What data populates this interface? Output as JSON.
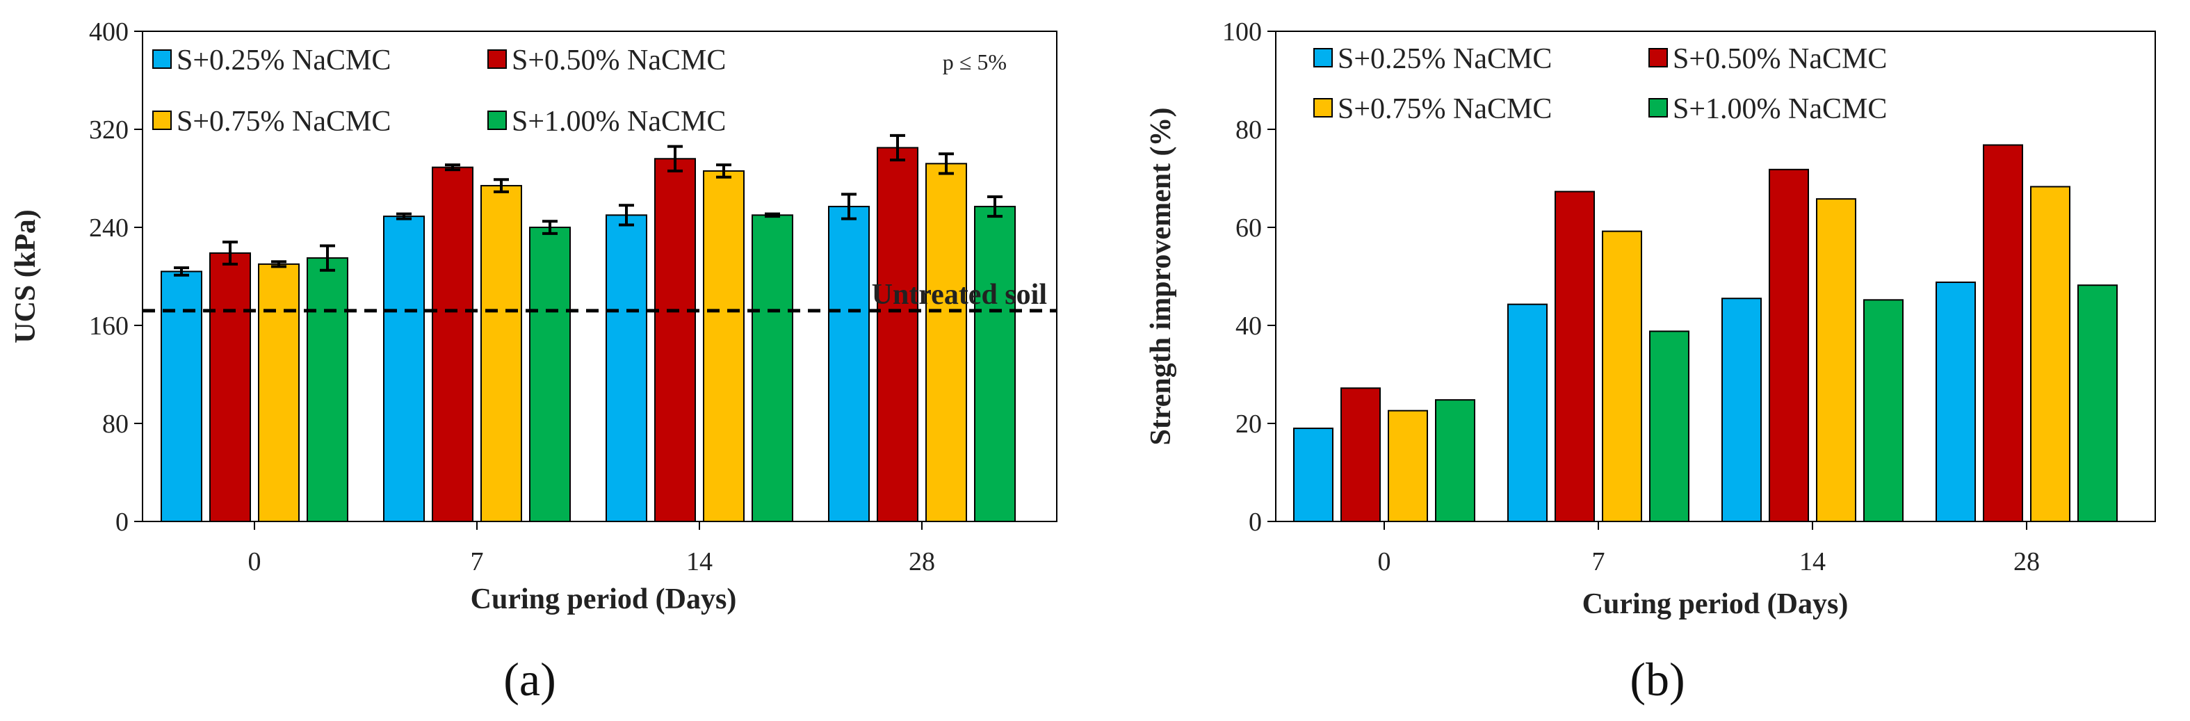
{
  "chart_data": [
    {
      "type": "bar",
      "panel_label": "(a)",
      "xlabel": "Curing period (Days)",
      "ylabel": "UCS (kPa)",
      "categories": [
        "0",
        "7",
        "14",
        "28"
      ],
      "ylim": [
        0,
        400
      ],
      "yticks": [
        "0",
        "80",
        "160",
        "240",
        "320",
        "400"
      ],
      "series": [
        {
          "name": "S+0.25% NaCMC",
          "color": "#00B0F0",
          "values": [
            204,
            249,
            250,
            257
          ],
          "errors": [
            3,
            2,
            8,
            10
          ]
        },
        {
          "name": "S+0.50% NaCMC",
          "color": "#C00000",
          "values": [
            219,
            289,
            296,
            305
          ],
          "errors": [
            9,
            2,
            10,
            10
          ]
        },
        {
          "name": "S+0.75% NaCMC",
          "color": "#FFC000",
          "values": [
            210,
            274,
            286,
            292
          ],
          "errors": [
            2,
            5,
            5,
            8
          ]
        },
        {
          "name": "S+1.00% NaCMC",
          "color": "#00B050",
          "values": [
            215,
            240,
            250,
            257
          ],
          "errors": [
            10,
            5,
            1,
            8
          ]
        }
      ],
      "reference_line": {
        "label": "Untreated soil",
        "value": 172
      },
      "annotation": "p ≤ 5%",
      "legend": "top-left, 2 columns",
      "grid": false
    },
    {
      "type": "bar",
      "panel_label": "(b)",
      "xlabel": "Curing period (Days)",
      "ylabel": "Strength improvement (%)",
      "categories": [
        "0",
        "7",
        "14",
        "28"
      ],
      "ylim": [
        0,
        100
      ],
      "yticks": [
        "0",
        "20",
        "40",
        "60",
        "80",
        "100"
      ],
      "series": [
        {
          "name": "S+0.25% NaCMC",
          "color": "#00B0F0",
          "values": [
            19,
            44.3,
            45.5,
            48.8
          ]
        },
        {
          "name": "S+0.50% NaCMC",
          "color": "#C00000",
          "values": [
            27.2,
            67.3,
            71.8,
            76.8
          ]
        },
        {
          "name": "S+0.75% NaCMC",
          "color": "#FFC000",
          "values": [
            22.6,
            59.2,
            65.8,
            68.3
          ]
        },
        {
          "name": "S+1.00% NaCMC",
          "color": "#00B050",
          "values": [
            24.8,
            38.8,
            45.2,
            48.2
          ]
        }
      ],
      "legend": "top, 2 columns",
      "grid": false
    }
  ]
}
